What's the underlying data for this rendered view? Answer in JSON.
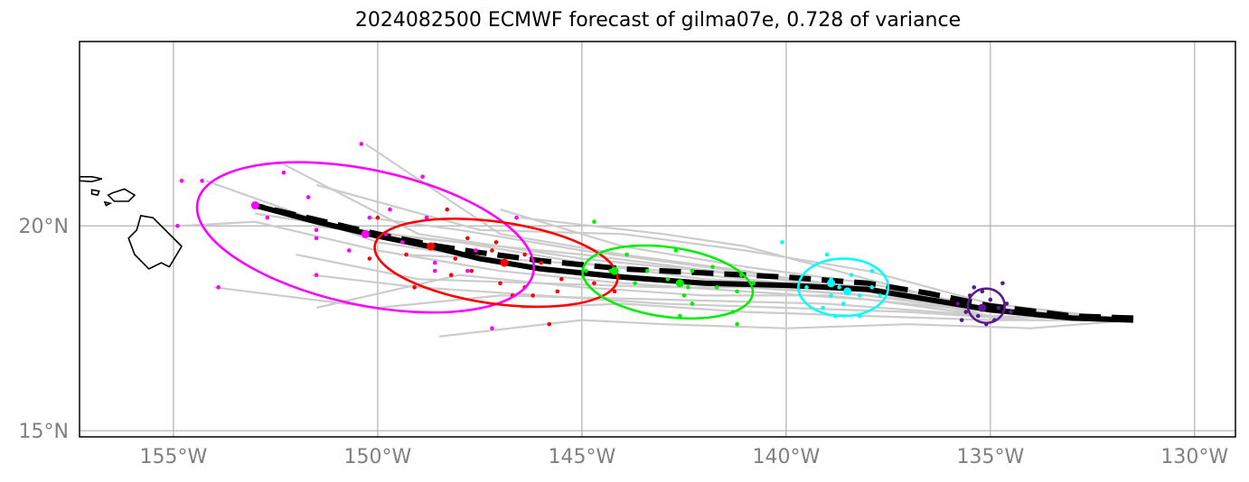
{
  "title": "2024082500 ECMWF forecast of gilma07e, 0.728 of variance",
  "axes": {
    "x_ticks": [
      {
        "lon": -155,
        "label": "155°W"
      },
      {
        "lon": -150,
        "label": "150°W"
      },
      {
        "lon": -145,
        "label": "145°W"
      },
      {
        "lon": -140,
        "label": "140°W"
      },
      {
        "lon": -135,
        "label": "135°W"
      },
      {
        "lon": -130,
        "label": "130°W"
      }
    ],
    "y_ticks": [
      {
        "lat": 20,
        "label": "20°N"
      },
      {
        "lat": 15,
        "label": "15°N"
      }
    ],
    "lon_range": [
      -157.3,
      -129.0
    ],
    "lat_range": [
      14.85,
      24.5
    ]
  },
  "colors": {
    "ensemble": "#cccccc",
    "mean_track": "#000000",
    "grid": "#b0b0b0",
    "coast": "#000000",
    "time_colors": [
      "#ff00ff",
      "#ff0000",
      "#00ee00",
      "#00ffff",
      "#5a1a8c"
    ]
  },
  "chart_data": {
    "type": "map",
    "title": "2024082500 ECMWF forecast of gilma07e, 0.728 of variance",
    "grid": true,
    "mean_track_solid": [
      [
        -131.5,
        17.7
      ],
      [
        -133,
        17.75
      ],
      [
        -135,
        17.95
      ],
      [
        -136.5,
        18.2
      ],
      [
        -138,
        18.45
      ],
      [
        -140,
        18.55
      ],
      [
        -142,
        18.6
      ],
      [
        -144,
        18.75
      ],
      [
        -146,
        18.95
      ],
      [
        -147.5,
        19.2
      ],
      [
        -148.5,
        19.45
      ],
      [
        -150,
        19.75
      ],
      [
        -151.5,
        20.1
      ],
      [
        -153,
        20.5
      ]
    ],
    "mean_track_dashed": [
      [
        -131.5,
        17.75
      ],
      [
        -133,
        17.8
      ],
      [
        -135,
        18.05
      ],
      [
        -136.5,
        18.35
      ],
      [
        -138,
        18.6
      ],
      [
        -140,
        18.75
      ],
      [
        -142,
        18.85
      ],
      [
        -144,
        18.95
      ],
      [
        -146,
        19.15
      ],
      [
        -147.5,
        19.35
      ],
      [
        -148.5,
        19.5
      ],
      [
        -150,
        19.8
      ],
      [
        -151.5,
        20.15
      ],
      [
        -153,
        20.5
      ]
    ],
    "ensemble_tracks": [
      [
        [
          -131.5,
          17.7
        ],
        [
          -134,
          17.5
        ],
        [
          -137,
          17.6
        ],
        [
          -140,
          17.5
        ],
        [
          -143,
          17.6
        ],
        [
          -145,
          17.7
        ],
        [
          -148.5,
          17.3
        ]
      ],
      [
        [
          -131.5,
          17.7
        ],
        [
          -135,
          17.8
        ],
        [
          -138,
          18.4
        ],
        [
          -141,
          18.9
        ],
        [
          -144,
          19.3
        ],
        [
          -147,
          19.8
        ],
        [
          -150.3,
          22.0
        ]
      ],
      [
        [
          -131.5,
          17.7
        ],
        [
          -135,
          17.9
        ],
        [
          -138,
          18.7
        ],
        [
          -141,
          19.5
        ],
        [
          -143,
          19.8
        ],
        [
          -146.5,
          20.2
        ]
      ],
      [
        [
          -131.5,
          17.7
        ],
        [
          -135,
          18.0
        ],
        [
          -138,
          18.5
        ],
        [
          -141,
          18.8
        ],
        [
          -145,
          19.2
        ],
        [
          -149,
          19.8
        ],
        [
          -152.3,
          21.5
        ]
      ],
      [
        [
          -131.5,
          17.7
        ],
        [
          -135,
          17.9
        ],
        [
          -138,
          18.3
        ],
        [
          -142,
          18.6
        ],
        [
          -146,
          19.0
        ],
        [
          -150,
          19.6
        ],
        [
          -154.2,
          21.1
        ]
      ],
      [
        [
          -131.5,
          17.7
        ],
        [
          -135,
          18.0
        ],
        [
          -138,
          18.6
        ],
        [
          -141,
          19.0
        ],
        [
          -144,
          19.5
        ],
        [
          -147,
          20.4
        ]
      ],
      [
        [
          -131.5,
          17.7
        ],
        [
          -135,
          17.8
        ],
        [
          -138,
          18.2
        ],
        [
          -141,
          18.4
        ],
        [
          -144,
          18.6
        ],
        [
          -147,
          18.9
        ],
        [
          -150,
          19.4
        ],
        [
          -153,
          20.1
        ],
        [
          -154.8,
          20.0
        ]
      ],
      [
        [
          -131.5,
          17.7
        ],
        [
          -135,
          17.9
        ],
        [
          -139,
          18.3
        ],
        [
          -142,
          18.3
        ],
        [
          -145,
          18.5
        ],
        [
          -148,
          18.8
        ],
        [
          -151.5,
          18.0
        ]
      ],
      [
        [
          -131.5,
          17.7
        ],
        [
          -135,
          17.8
        ],
        [
          -139,
          18.1
        ],
        [
          -143,
          18.2
        ],
        [
          -147,
          18.3
        ],
        [
          -150,
          18.0
        ],
        [
          -154,
          18.5
        ]
      ],
      [
        [
          -131.5,
          17.7
        ],
        [
          -135,
          18.0
        ],
        [
          -138,
          18.5
        ],
        [
          -142,
          18.7
        ],
        [
          -145,
          19.1
        ],
        [
          -148,
          19.6
        ],
        [
          -151.6,
          20.0
        ]
      ],
      [
        [
          -131.5,
          17.7
        ],
        [
          -135,
          18.1
        ],
        [
          -138,
          18.9
        ],
        [
          -141,
          19.4
        ],
        [
          -144,
          19.8
        ],
        [
          -147.5,
          19.9
        ],
        [
          -151.5,
          21.0
        ]
      ],
      [
        [
          -131.5,
          17.7
        ],
        [
          -135,
          17.9
        ],
        [
          -138,
          18.3
        ],
        [
          -141,
          18.5
        ],
        [
          -143,
          18.5
        ],
        [
          -146,
          18.6
        ],
        [
          -149,
          18.7
        ],
        [
          -152,
          19.3
        ]
      ],
      [
        [
          -131.5,
          17.7
        ],
        [
          -134,
          17.7
        ],
        [
          -137,
          17.9
        ],
        [
          -140,
          18.0
        ],
        [
          -143,
          18.1
        ],
        [
          -146,
          18.3
        ],
        [
          -149,
          18.5
        ],
        [
          -151.6,
          18.8
        ]
      ],
      [
        [
          -131.5,
          17.7
        ],
        [
          -135,
          18.0
        ],
        [
          -139,
          18.6
        ],
        [
          -142,
          19.0
        ],
        [
          -145,
          19.4
        ],
        [
          -148,
          19.9
        ],
        [
          -150.2,
          20.2
        ]
      ],
      [
        [
          -131.5,
          17.7
        ],
        [
          -135,
          17.9
        ],
        [
          -138,
          18.4
        ],
        [
          -141,
          18.7
        ],
        [
          -144,
          19.0
        ],
        [
          -147,
          19.2
        ],
        [
          -149.5,
          19.3
        ]
      ],
      [
        [
          -131.5,
          17.7
        ],
        [
          -135,
          17.7
        ],
        [
          -138,
          17.8
        ],
        [
          -141,
          17.9
        ],
        [
          -144,
          18.1
        ],
        [
          -146.5,
          18.0
        ]
      ],
      [
        [
          -131.5,
          17.7
        ],
        [
          -135,
          18.0
        ],
        [
          -138,
          18.4
        ],
        [
          -141,
          18.8
        ],
        [
          -145,
          19.3
        ],
        [
          -149,
          19.7
        ],
        [
          -153.0,
          20.3
        ]
      ]
    ],
    "uncertainty_ellipses": [
      {
        "color": "#ff00ff",
        "center": [
          -150.3,
          19.72
        ],
        "rx_deg": 4.2,
        "ry_deg": 1.65,
        "angle_deg": -12
      },
      {
        "color": "#ff0000",
        "center": [
          -147.1,
          19.1
        ],
        "rx_deg": 3.0,
        "ry_deg": 1.0,
        "angle_deg": -8
      },
      {
        "color": "#00ee00",
        "center": [
          -142.9,
          18.63
        ],
        "rx_deg": 2.1,
        "ry_deg": 0.85,
        "angle_deg": -8
      },
      {
        "color": "#00ffff",
        "center": [
          -138.6,
          18.5
        ],
        "rx_deg": 1.1,
        "ry_deg": 0.7,
        "angle_deg": 0
      },
      {
        "color": "#5a1a8c",
        "center": [
          -135.1,
          18.05
        ],
        "rx_deg": 0.45,
        "ry_deg": 0.42,
        "angle_deg": 0
      }
    ],
    "mean_positions": [
      {
        "color": "#ff00ff",
        "points": [
          [
            -153.0,
            20.5
          ],
          [
            -150.3,
            19.8
          ]
        ]
      },
      {
        "color": "#ff0000",
        "points": [
          [
            -148.7,
            19.5
          ],
          [
            -146.9,
            19.1
          ]
        ]
      },
      {
        "color": "#00ee00",
        "points": [
          [
            -144.2,
            18.9
          ],
          [
            -142.6,
            18.6
          ]
        ]
      },
      {
        "color": "#00ffff",
        "points": [
          [
            -138.9,
            18.6
          ],
          [
            -138.5,
            18.4
          ]
        ]
      },
      {
        "color": "#5a1a8c",
        "points": [
          [
            -135.2,
            18.0
          ]
        ]
      }
    ],
    "member_points": [
      {
        "color": "#ff00ff",
        "points": [
          [
            -150.4,
            22.0
          ],
          [
            -148.9,
            21.2
          ],
          [
            -152.3,
            21.3
          ],
          [
            -154.8,
            21.1
          ],
          [
            -154.3,
            21.1
          ],
          [
            -151.7,
            20.7
          ],
          [
            -152.7,
            20.2
          ],
          [
            -150.2,
            20.2
          ],
          [
            -149.7,
            20.4
          ],
          [
            -148.8,
            20.2
          ],
          [
            -151.5,
            19.9
          ],
          [
            -151.5,
            19.7
          ],
          [
            -149.8,
            19.8
          ],
          [
            -149.4,
            19.6
          ],
          [
            -150.7,
            19.4
          ],
          [
            -148.6,
            19.1
          ],
          [
            -151.5,
            18.8
          ],
          [
            -153.9,
            18.5
          ],
          [
            -146.6,
            20.2
          ],
          [
            -148.6,
            18.9
          ],
          [
            -147.8,
            18.9
          ],
          [
            -147.6,
            19.4
          ],
          [
            -154.9,
            20.0
          ],
          [
            -147.2,
            17.5
          ]
        ]
      },
      {
        "color": "#ff0000",
        "points": [
          [
            -150.0,
            20.2
          ],
          [
            -148.3,
            20.4
          ],
          [
            -149.3,
            19.3
          ],
          [
            -148.1,
            19.2
          ],
          [
            -147.2,
            19.4
          ],
          [
            -146.0,
            19.1
          ],
          [
            -147.7,
            18.9
          ],
          [
            -148.2,
            18.8
          ],
          [
            -147.0,
            18.6
          ],
          [
            -146.4,
            18.5
          ],
          [
            -145.5,
            18.7
          ],
          [
            -144.7,
            18.6
          ],
          [
            -145.6,
            18.4
          ],
          [
            -146.7,
            18.3
          ],
          [
            -149.1,
            18.5
          ],
          [
            -145.8,
            17.6
          ],
          [
            -150.2,
            19.2
          ],
          [
            -146.4,
            19.3
          ],
          [
            -147.8,
            19.7
          ],
          [
            -147.1,
            19.6
          ],
          [
            -146.2,
            18.3
          ],
          [
            -144.2,
            18.4
          ]
        ]
      },
      {
        "color": "#00ee00",
        "points": [
          [
            -144.7,
            20.1
          ],
          [
            -144.3,
            18.9
          ],
          [
            -143.9,
            19.3
          ],
          [
            -143.4,
            18.9
          ],
          [
            -142.7,
            19.4
          ],
          [
            -142.3,
            18.9
          ],
          [
            -141.8,
            19.0
          ],
          [
            -142.9,
            18.7
          ],
          [
            -142.4,
            18.5
          ],
          [
            -141.7,
            18.5
          ],
          [
            -141.1,
            18.8
          ],
          [
            -141.2,
            18.4
          ],
          [
            -142.5,
            18.3
          ],
          [
            -142.3,
            18.1
          ],
          [
            -142.6,
            17.8
          ],
          [
            -141.3,
            17.9
          ],
          [
            -141.2,
            17.6
          ],
          [
            -140.8,
            18.6
          ],
          [
            -143.7,
            18.6
          ],
          [
            -144.9,
            18.9
          ]
        ]
      },
      {
        "color": "#00ffff",
        "points": [
          [
            -140.1,
            19.6
          ],
          [
            -139.0,
            19.3
          ],
          [
            -138.9,
            18.7
          ],
          [
            -138.7,
            18.5
          ],
          [
            -138.4,
            18.8
          ],
          [
            -137.9,
            18.9
          ],
          [
            -138.2,
            18.3
          ],
          [
            -137.7,
            18.3
          ],
          [
            -138.9,
            18.3
          ],
          [
            -139.5,
            18.5
          ],
          [
            -138.8,
            17.8
          ],
          [
            -138.2,
            17.8
          ],
          [
            -139.1,
            18.0
          ],
          [
            -137.9,
            18.5
          ],
          [
            -138.6,
            18.1
          ]
        ]
      },
      {
        "color": "#5a1a8c",
        "points": [
          [
            -135.5,
            18.3
          ],
          [
            -135.0,
            18.2
          ],
          [
            -134.8,
            18.0
          ],
          [
            -135.3,
            17.8
          ],
          [
            -134.9,
            17.7
          ],
          [
            -135.6,
            17.9
          ],
          [
            -135.2,
            18.4
          ],
          [
            -134.6,
            18.1
          ],
          [
            -135.8,
            18.1
          ],
          [
            -135.1,
            17.6
          ],
          [
            -134.7,
            18.6
          ],
          [
            -135.4,
            18.5
          ],
          [
            -134.5,
            17.9
          ],
          [
            -135.7,
            17.7
          ]
        ]
      }
    ]
  },
  "coastlines": {
    "hawaii": [
      [
        -155.1,
        19.0
      ],
      [
        -154.8,
        19.5
      ],
      [
        -155.2,
        19.9
      ],
      [
        -155.5,
        20.2
      ],
      [
        -155.8,
        20.25
      ],
      [
        -155.9,
        19.9
      ],
      [
        -156.1,
        19.7
      ],
      [
        -155.95,
        19.3
      ],
      [
        -155.6,
        18.95
      ],
      [
        -155.3,
        19.1
      ],
      [
        -155.1,
        19.0
      ]
    ],
    "maui": [
      [
        -156.5,
        20.8
      ],
      [
        -156.2,
        20.9
      ],
      [
        -155.95,
        20.75
      ],
      [
        -156.1,
        20.6
      ],
      [
        -156.45,
        20.6
      ],
      [
        -156.6,
        20.75
      ],
      [
        -156.5,
        20.8
      ]
    ],
    "molokai": [
      [
        -157.3,
        21.2
      ],
      [
        -157.0,
        21.2
      ],
      [
        -156.75,
        21.15
      ],
      [
        -157.0,
        21.08
      ],
      [
        -157.3,
        21.1
      ],
      [
        -157.3,
        21.2
      ]
    ],
    "lanai": [
      [
        -157.0,
        20.88
      ],
      [
        -156.82,
        20.85
      ],
      [
        -156.86,
        20.75
      ],
      [
        -157.0,
        20.78
      ],
      [
        -157.0,
        20.88
      ]
    ],
    "kahoolawe": [
      [
        -156.68,
        20.58
      ],
      [
        -156.55,
        20.55
      ],
      [
        -156.65,
        20.5
      ],
      [
        -156.68,
        20.58
      ]
    ]
  }
}
